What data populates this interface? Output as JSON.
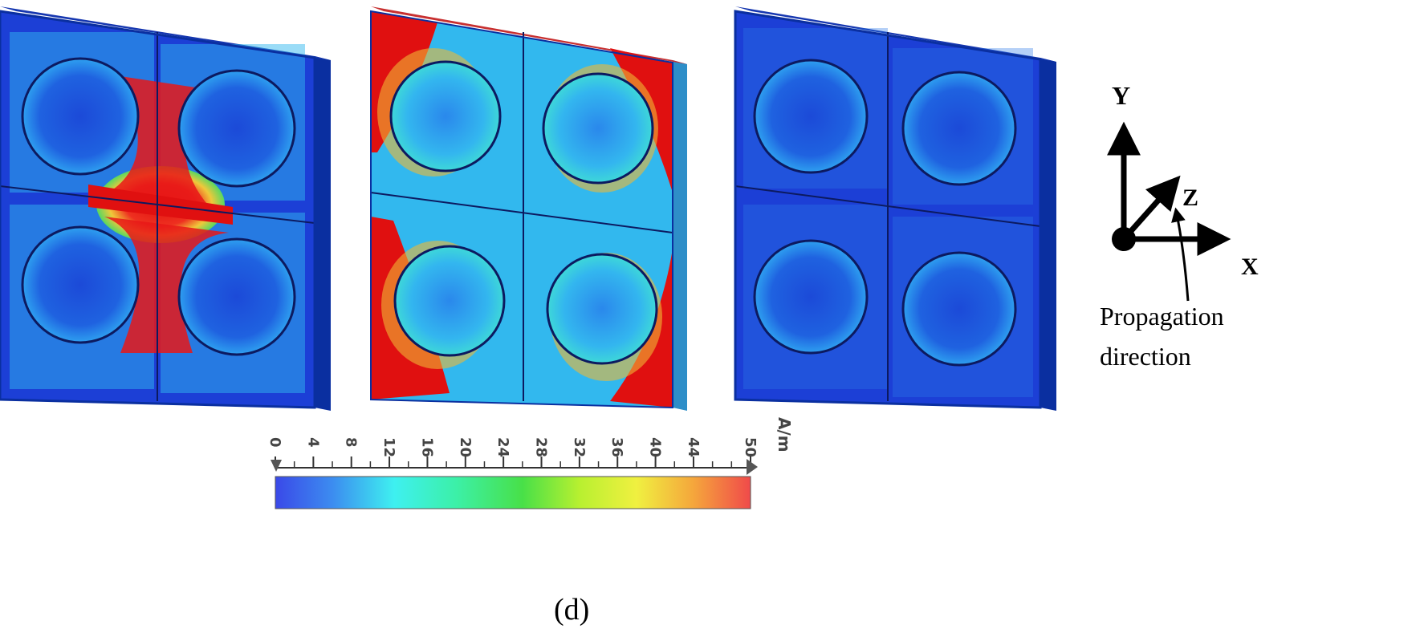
{
  "figure": {
    "caption": "(d)",
    "panels": [
      {
        "id": "panel-1",
        "dominant": "blue",
        "hotspot": "center-cross"
      },
      {
        "id": "panel-2",
        "dominant": "mixed",
        "hotspot": "outer-corners"
      },
      {
        "id": "panel-3",
        "dominant": "blue",
        "hotspot": "none"
      }
    ]
  },
  "axes_diagram": {
    "y_label": "Y",
    "z_label": "Z",
    "x_label": "X",
    "propagation_line1": "Propagation",
    "propagation_line2": "direction"
  },
  "colorbar": {
    "ticks": [
      "0",
      "4",
      "8",
      "12",
      "16",
      "20",
      "24",
      "28",
      "32",
      "36",
      "40",
      "44",
      "50"
    ],
    "unit": "A/m",
    "min": 0,
    "max": 50,
    "gradient": [
      "#3a49e8",
      "#3c8cf0",
      "#3ef0f0",
      "#3cf0a8",
      "#48e048",
      "#b8f030",
      "#f0f040",
      "#f5a63c",
      "#f04a4a"
    ]
  },
  "colors": {
    "blue": "#1a3fd0",
    "cyan": "#33c4ee",
    "green": "#33d470",
    "yellow": "#f1e438",
    "red": "#e01818",
    "edge": "#0a2fa0"
  }
}
